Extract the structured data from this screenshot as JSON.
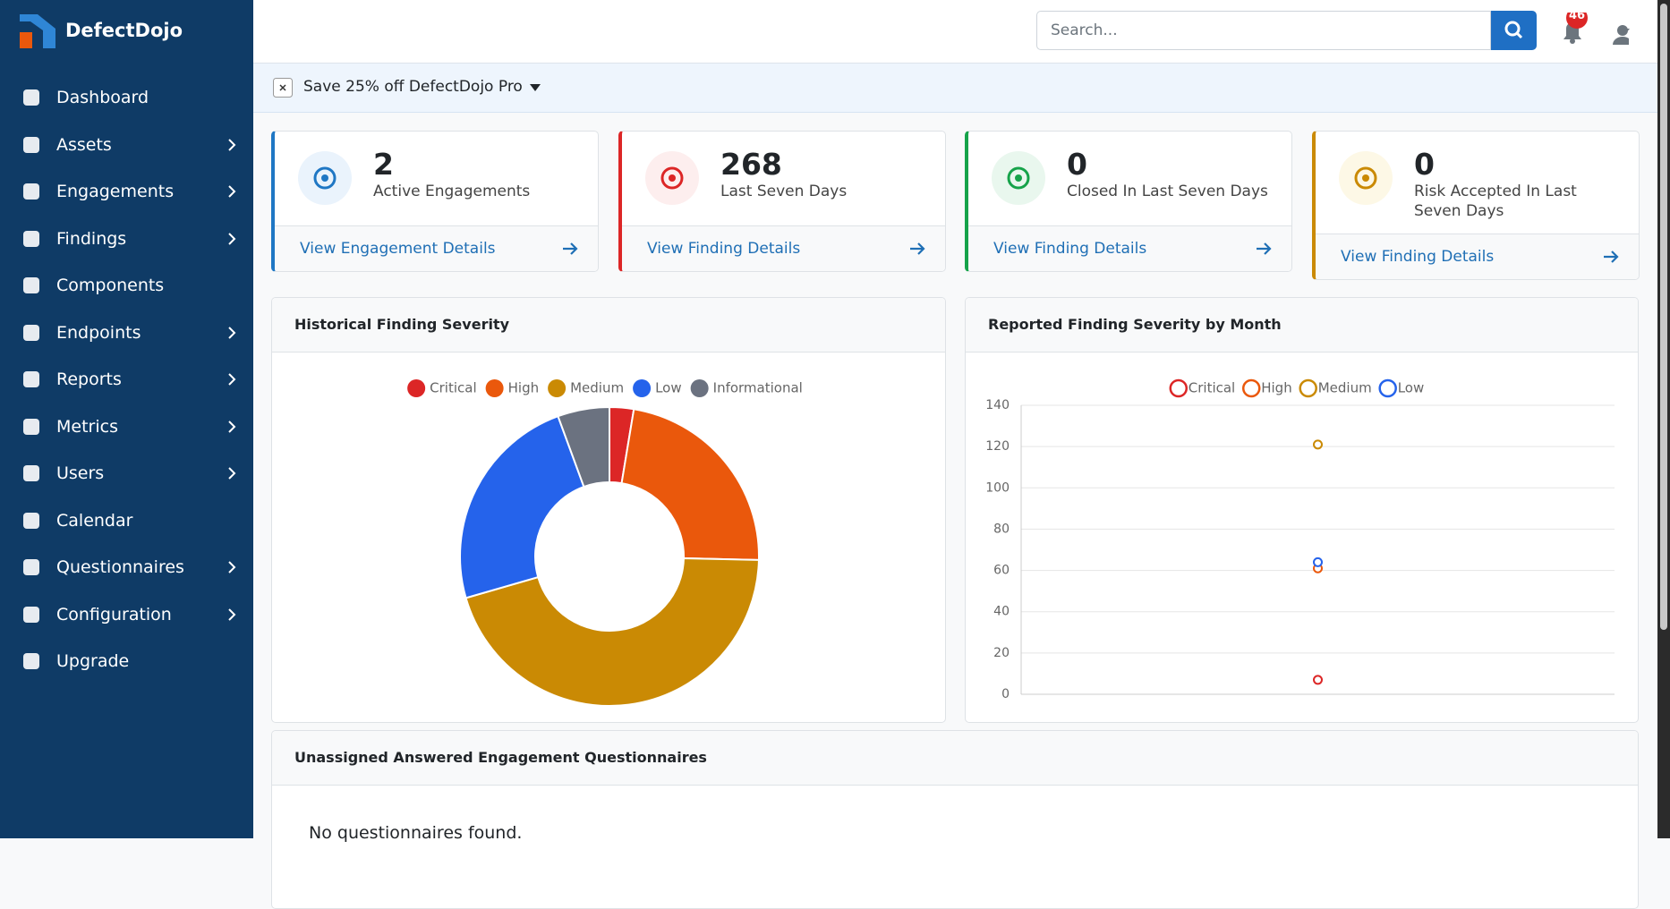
{
  "sidebar": {
    "brand": "DefectDojo",
    "items": [
      {
        "label": "Dashboard",
        "submenu": false
      },
      {
        "label": "Assets",
        "submenu": true
      },
      {
        "label": "Engagements",
        "submenu": true
      },
      {
        "label": "Findings",
        "submenu": true
      },
      {
        "label": "Components",
        "submenu": false
      },
      {
        "label": "Endpoints",
        "submenu": true
      },
      {
        "label": "Reports",
        "submenu": true
      },
      {
        "label": "Metrics",
        "submenu": true
      },
      {
        "label": "Users",
        "submenu": true
      },
      {
        "label": "Calendar",
        "submenu": false
      },
      {
        "label": "Questionnaires",
        "submenu": true
      },
      {
        "label": "Configuration",
        "submenu": true
      },
      {
        "label": "Upgrade",
        "submenu": false
      }
    ]
  },
  "header": {
    "search_placeholder": "Search...",
    "notification_count": 46
  },
  "banner": {
    "text": "Save 25% off DefectDojo Pro"
  },
  "cards": [
    {
      "value": 2,
      "label": "Active Engagements",
      "link": "View Engagement Details",
      "color": "#1f77c4",
      "tint": "#eaf3fc"
    },
    {
      "value": 268,
      "label": "Last Seven Days",
      "link": "View Finding Details",
      "color": "#dc2626",
      "tint": "#fdeeee"
    },
    {
      "value": 0,
      "label": "Closed In Last Seven Days",
      "link": "View Finding Details",
      "color": "#16a34a",
      "tint": "#e9f7ee"
    },
    {
      "value": 0,
      "label": "Risk Accepted In Last Seven Days",
      "link": "View Finding Details",
      "color": "#ca8a04",
      "tint": "#fdf8e6"
    }
  ],
  "chart_data": [
    {
      "type": "donut",
      "title": "Historical Finding Severity",
      "categories": [
        "Critical",
        "High",
        "Medium",
        "Low",
        "Informational"
      ],
      "values": [
        7,
        61,
        121,
        64,
        15
      ],
      "colors": [
        "#dc2626",
        "#ea580c",
        "#ca8a04",
        "#2563eb",
        "#6b7280"
      ]
    },
    {
      "type": "scatter",
      "title": "Reported Finding Severity by Month",
      "categories": [
        null
      ],
      "series": [
        {
          "name": "Critical",
          "color": "#dc2626",
          "values": [
            7
          ]
        },
        {
          "name": "High",
          "color": "#ea580c",
          "values": [
            61
          ]
        },
        {
          "name": "Medium",
          "color": "#ca8a04",
          "values": [
            121
          ]
        },
        {
          "name": "Low",
          "color": "#2563eb",
          "values": [
            64
          ]
        }
      ],
      "ylim": [
        0,
        140
      ],
      "yticks": [
        0,
        20,
        40,
        60,
        80,
        100,
        120,
        140
      ],
      "grid": true
    }
  ],
  "questionnaires": {
    "title": "Unassigned Answered Engagement Questionnaires",
    "empty": "No questionnaires found."
  }
}
